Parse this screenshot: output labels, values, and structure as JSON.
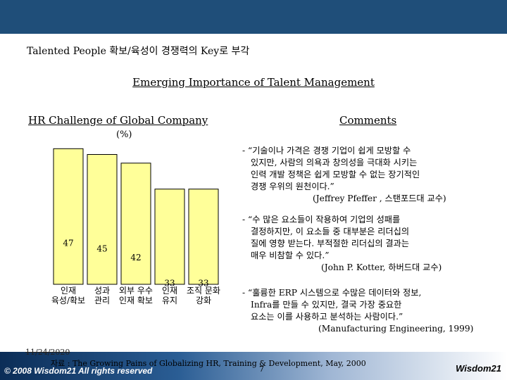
{
  "headline": "Talented People 확보/육성이 경쟁력의 Key로 부각",
  "section_title": "Emerging Importance of Talent Management",
  "left_title": "HR Challenge of Global Company",
  "right_title": "Comments",
  "colors": {
    "top_bar": "#1f4e79",
    "bar_fill": "#ffff99",
    "bar_stroke": "#000000"
  },
  "chart_data": {
    "type": "bar",
    "title": "",
    "ylabel": "(%)",
    "categories": [
      "인재\n육성/확보",
      "성과\n관리",
      "외부 우수\n인재 확보",
      "인재\n유지",
      "조직 문화\n강화"
    ],
    "values": [
      47,
      45,
      42,
      33,
      33
    ],
    "data_labels": [
      "47",
      "45",
      "42",
      "33",
      "33"
    ],
    "ylim": [
      0,
      100
    ],
    "grid": false,
    "legend": "none"
  },
  "comments": [
    {
      "lines": [
        "- “기술이나 가격은 경쟁 기업이 쉽게 모방할 수",
        "있지만, 사람의 의욕과 창의성을 극대화 시키는",
        "인력 개발 정책은 쉽게 모방할 수 없는 장기적인",
        "경쟁 우위의 원천이다.”"
      ],
      "source": "(Jeffrey Pfeffer , 스탠포드대 교수)"
    },
    {
      "lines": [
        "- “수 많은 요소들이 작용하여 기업의 성패를",
        "결정하지만, 이 요소들 중 대부분은 리더십의",
        "질에 영향 받는다. 부적절한 리더십의 결과는",
        "매우 비참할 수 있다.”"
      ],
      "source": "(John P. Kotter, 하버드대 교수)"
    },
    {
      "lines": [
        "- “훌륭한 ERP 시스템으로 수많은 데이터와 정보,",
        "Infra를 만들 수 있지만, 결국 가장 중요한",
        "요소는 이를 사용하고 분석하는 사람이다.”"
      ],
      "source": "(Manufacturing Engineering, 1999)"
    }
  ],
  "footer": {
    "date": "11/24/2020",
    "source": "자료 : The Growing Pains of Globalizing HR, Training & Development, May, 2000",
    "page": "7",
    "copyright": "© 2008  Wisdom21  All rights reserved",
    "logo": "Wisdom21"
  }
}
